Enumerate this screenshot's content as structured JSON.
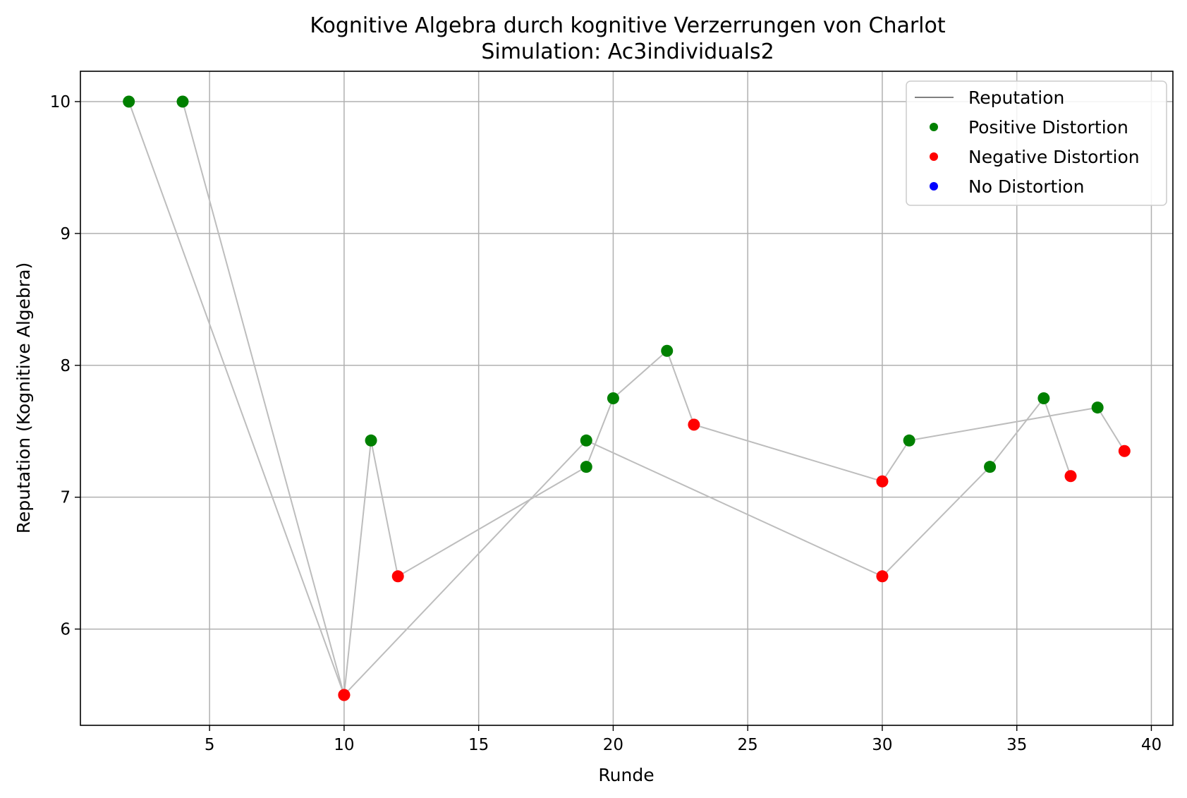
{
  "chart_data": {
    "type": "scatter",
    "title": "Kognitive Algebra durch kognitive Verzerrungen von Charlot",
    "subtitle": "Simulation: Ac3individuals2",
    "xlabel": "Runde",
    "ylabel": "Reputation (Kognitive Algebra)",
    "xlim": [
      0.2,
      40.8
    ],
    "ylim": [
      5.27,
      10.23
    ],
    "xticks": [
      5,
      10,
      15,
      20,
      25,
      30,
      35,
      40
    ],
    "yticks": [
      6,
      7,
      8,
      9,
      10
    ],
    "grid": true,
    "legend_position": "top-right",
    "colors": {
      "line": "#bdbdbd",
      "legend_line": "#808080",
      "positive": "#008000",
      "negative": "#ff0000",
      "none": "#0000ff"
    },
    "legend": [
      {
        "label": "Reputation",
        "kind": "line",
        "color": "#808080"
      },
      {
        "label": "Positive Distortion",
        "kind": "dot",
        "color": "#008000"
      },
      {
        "label": "Negative Distortion",
        "kind": "dot",
        "color": "#ff0000"
      },
      {
        "label": "No Distortion",
        "kind": "dot",
        "color": "#0000ff"
      }
    ],
    "series": [
      {
        "points": [
          {
            "x": 2,
            "y": 10.0,
            "distortion": "positive"
          },
          {
            "x": 10,
            "y": 5.5,
            "distortion": "negative"
          },
          {
            "x": 11,
            "y": 7.43,
            "distortion": "positive"
          },
          {
            "x": 12,
            "y": 6.4,
            "distortion": "negative"
          },
          {
            "x": 19,
            "y": 7.23,
            "distortion": "positive"
          },
          {
            "x": 20,
            "y": 7.75,
            "distortion": "positive"
          },
          {
            "x": 22,
            "y": 8.11,
            "distortion": "positive"
          },
          {
            "x": 23,
            "y": 7.55,
            "distortion": "negative"
          },
          {
            "x": 30,
            "y": 7.12,
            "distortion": "negative"
          },
          {
            "x": 31,
            "y": 7.43,
            "distortion": "positive"
          },
          {
            "x": 38,
            "y": 7.68,
            "distortion": "positive"
          },
          {
            "x": 39,
            "y": 7.35,
            "distortion": "negative"
          }
        ]
      },
      {
        "points": [
          {
            "x": 4,
            "y": 10.0,
            "distortion": "positive"
          },
          {
            "x": 10,
            "y": 5.5,
            "distortion": "negative"
          },
          {
            "x": 19,
            "y": 7.43,
            "distortion": "positive"
          },
          {
            "x": 30,
            "y": 6.4,
            "distortion": "negative"
          },
          {
            "x": 34,
            "y": 7.23,
            "distortion": "positive"
          },
          {
            "x": 36,
            "y": 7.75,
            "distortion": "positive"
          },
          {
            "x": 37,
            "y": 7.16,
            "distortion": "negative"
          }
        ]
      }
    ]
  }
}
